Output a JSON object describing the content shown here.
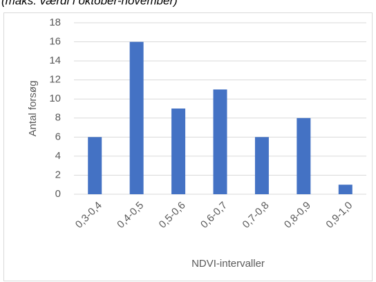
{
  "chart_data": {
    "type": "bar",
    "subtitle": "(maks. værdi i oktober-november)",
    "categories": [
      "0,3-0,4",
      "0,4-0,5",
      "0,5-0,6",
      "0,6-0,7",
      "0,7-0,8",
      "0,8-0,9",
      "0,9-1,0"
    ],
    "values": [
      6,
      16,
      9,
      11,
      6,
      8,
      1
    ],
    "color": "#4472c4",
    "x_label": "NDVI-intervaller",
    "y_label": "Antal forsøg",
    "ylim": [
      0,
      18
    ],
    "yticks": [
      0,
      2,
      4,
      6,
      8,
      10,
      12,
      14,
      16,
      18
    ],
    "grid": true
  }
}
